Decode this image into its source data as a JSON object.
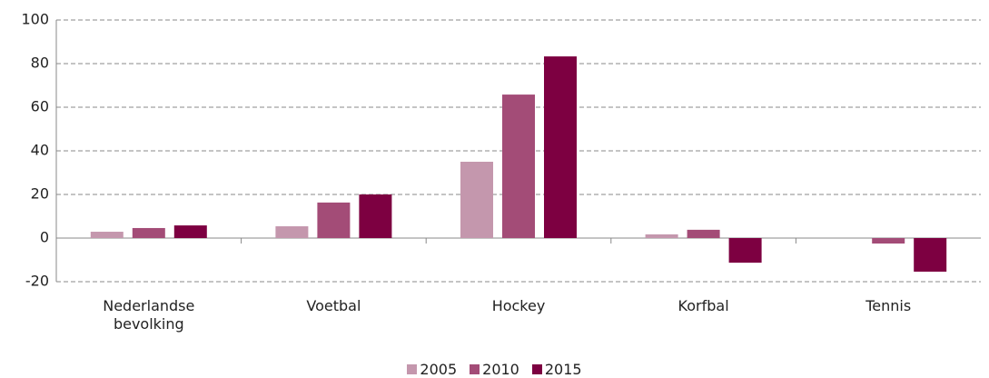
{
  "chart_data": {
    "type": "bar",
    "categories": [
      "Nederlandse bevolking",
      "Voetbal",
      "Hockey",
      "Korfbal",
      "Tennis"
    ],
    "series": [
      {
        "name": "2005",
        "color": "#c497ad",
        "values": [
          2.9,
          5.4,
          35,
          1.7,
          0
        ]
      },
      {
        "name": "2010",
        "color": "#a34c77",
        "values": [
          4.6,
          16.3,
          65.8,
          3.8,
          -2.5
        ]
      },
      {
        "name": "2015",
        "color": "#7d0041",
        "values": [
          5.8,
          20,
          83.3,
          -11.3,
          -15.4
        ]
      }
    ],
    "ylim": [
      -20,
      100
    ],
    "yticks": [
      -20,
      0,
      20,
      40,
      60,
      80,
      100
    ],
    "grid": true
  }
}
